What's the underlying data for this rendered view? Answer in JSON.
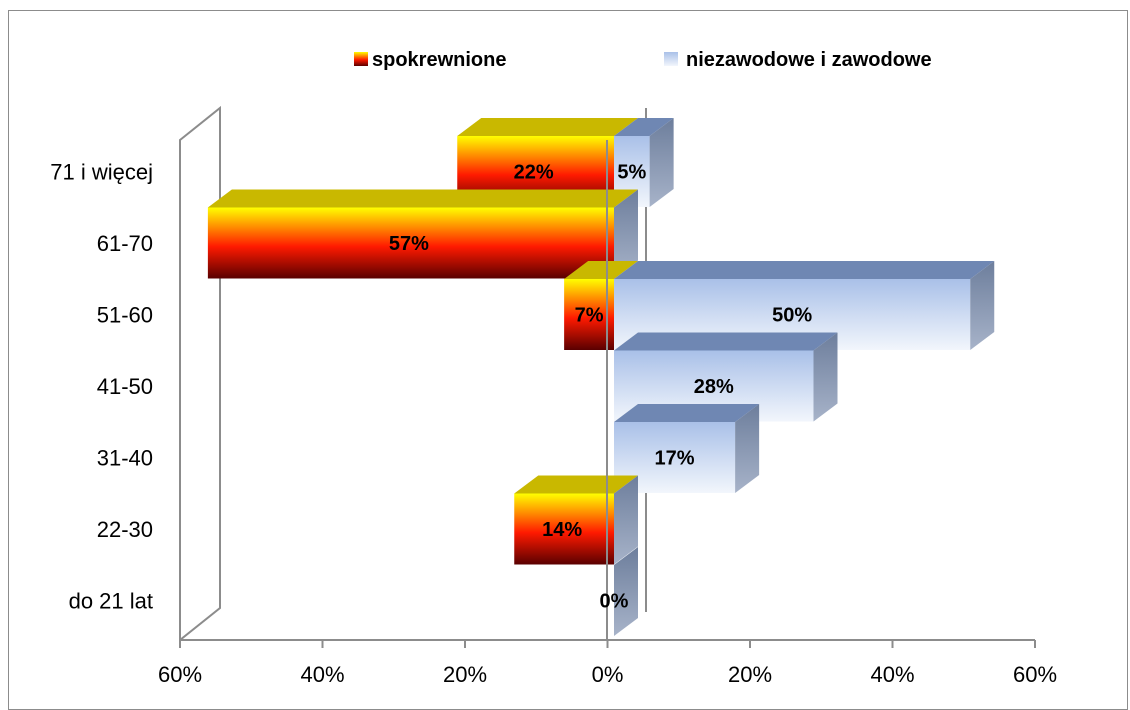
{
  "chart_data": {
    "type": "bar",
    "orientation": "horizontal",
    "style": "3d-pyramid",
    "categories": [
      "do 21 lat",
      "22-30",
      "31-40",
      "41-50",
      "51-60",
      "61-70",
      "71 i więcej"
    ],
    "series": [
      {
        "name": "spokrewnione",
        "direction": "left",
        "values": [
          0,
          14,
          0,
          0,
          7,
          57,
          22
        ],
        "labels": [
          "",
          "14%",
          "",
          "",
          "7%",
          "57%",
          "22%"
        ],
        "color_top": "#ffff00",
        "color_mid": "#ff0000",
        "color_bottom": "#6b0000",
        "color_cap": "#c8b400"
      },
      {
        "name": "niezawodowe i zawodowe",
        "direction": "right",
        "values": [
          0,
          0,
          17,
          28,
          50,
          0,
          5
        ],
        "labels": [
          "0%",
          "",
          "17%",
          "28%",
          "50%",
          "",
          "5%"
        ],
        "color_top": "#a8bfe6",
        "color_bottom": "#eef3fb",
        "color_side": "#7a8aa6",
        "color_cap": "#6f87b3"
      }
    ],
    "x_ticks": [
      "60%",
      "40%",
      "20%",
      "0%",
      "20%",
      "40%",
      "60%"
    ],
    "xlim": [
      -60,
      60
    ],
    "legend_position": "top",
    "grid": false
  }
}
